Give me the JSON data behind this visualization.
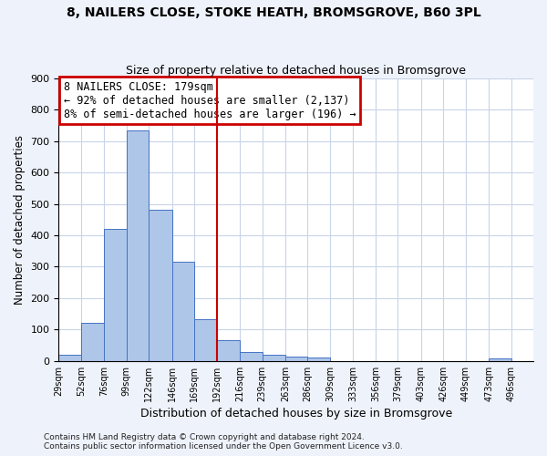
{
  "title": "8, NAILERS CLOSE, STOKE HEATH, BROMSGROVE, B60 3PL",
  "subtitle": "Size of property relative to detached houses in Bromsgrove",
  "xlabel": "Distribution of detached houses by size in Bromsgrove",
  "ylabel": "Number of detached properties",
  "bin_labels": [
    "29sqm",
    "52sqm",
    "76sqm",
    "99sqm",
    "122sqm",
    "146sqm",
    "169sqm",
    "192sqm",
    "216sqm",
    "239sqm",
    "263sqm",
    "286sqm",
    "309sqm",
    "333sqm",
    "356sqm",
    "379sqm",
    "403sqm",
    "426sqm",
    "449sqm",
    "473sqm",
    "496sqm"
  ],
  "bin_edges": [
    29,
    52,
    76,
    99,
    122,
    146,
    169,
    192,
    216,
    239,
    263,
    286,
    309,
    333,
    356,
    379,
    403,
    426,
    449,
    473,
    496
  ],
  "bar_heights": [
    20,
    122,
    420,
    735,
    480,
    316,
    134,
    65,
    28,
    20,
    15,
    10,
    0,
    0,
    0,
    0,
    0,
    0,
    0,
    8,
    0
  ],
  "bar_color": "#aec6e8",
  "bar_edge_color": "#4472c4",
  "vline_x": 192,
  "vline_color": "#cc0000",
  "ylim": [
    0,
    900
  ],
  "yticks": [
    0,
    100,
    200,
    300,
    400,
    500,
    600,
    700,
    800,
    900
  ],
  "annotation_line1": "8 NAILERS CLOSE: 179sqm",
  "annotation_line2": "← 92% of detached houses are smaller (2,137)",
  "annotation_line3": "8% of semi-detached houses are larger (196) →",
  "footer_line1": "Contains HM Land Registry data © Crown copyright and database right 2024.",
  "footer_line2": "Contains public sector information licensed under the Open Government Licence v3.0.",
  "bg_color": "#eef2fa",
  "plot_bg_color": "#ffffff",
  "grid_color": "#c8d4e8"
}
